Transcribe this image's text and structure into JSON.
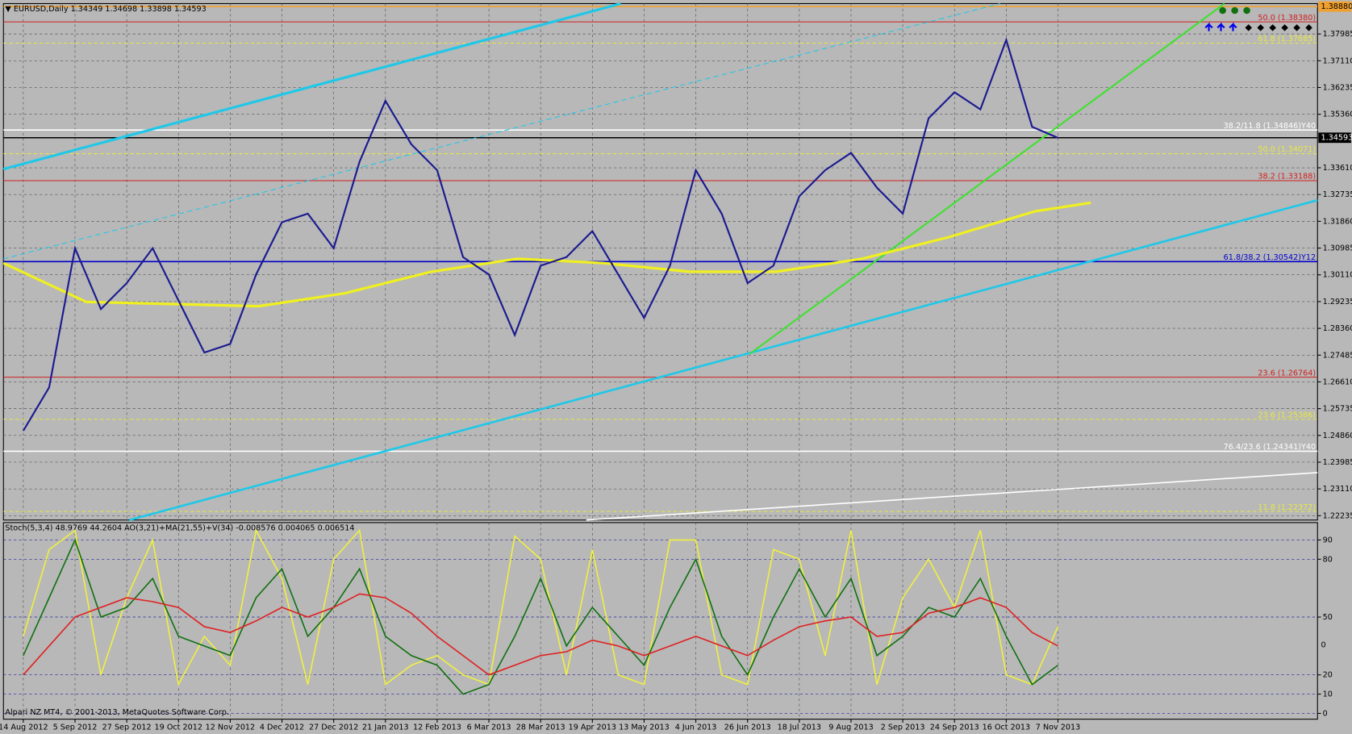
{
  "chart_data": [
    {
      "type": "line",
      "title": "▼ EURUSD,Daily 1.34349 1.34698 1.33898 1.34593",
      "footer": "Alpari NZ MT4, © 2001-2013, MetaQuotes Software Corp.",
      "categories": [
        "14 Aug 2012",
        null,
        "5 Sep 2012",
        null,
        "27 Sep 2012",
        null,
        "19 Oct 2012",
        null,
        "12 Nov 2012",
        null,
        "4 Dec 2012",
        null,
        "27 Dec 2012",
        null,
        "21 Jan 2013",
        null,
        "12 Feb 2013",
        null,
        "6 Mar 2013",
        null,
        "28 Mar 2013",
        null,
        "19 Apr 2013",
        null,
        "13 May 2013",
        null,
        "4 Jun 2013",
        null,
        "26 Jun 2013",
        null,
        "18 Jul 2013",
        null,
        "9 Aug 2013",
        null,
        "2 Sep 2013",
        null,
        "24 Sep 2013",
        null,
        "16 Oct 2013",
        null,
        "7 Nov 2013"
      ],
      "series": [
        {
          "color": "#1a1a90",
          "values": [
            1.2501,
            1.2643,
            1.3098,
            1.2899,
            1.2984,
            1.3098,
            1.2927,
            1.2757,
            1.2785,
            1.3012,
            1.3183,
            1.3211,
            1.3098,
            1.3381,
            1.358,
            1.3438,
            1.3353,
            1.3069,
            1.3012,
            1.2814,
            1.3041,
            1.3069,
            1.3154,
            1.3012,
            1.287,
            1.3041,
            1.3353,
            1.3211,
            1.2984,
            1.3041,
            1.3268,
            1.3353,
            1.341,
            1.3296,
            1.3211,
            1.3523,
            1.3608,
            1.3552,
            1.3779,
            1.3495,
            1.3459
          ]
        }
      ],
      "ylim": [
        1.22093,
        1.38978
      ],
      "yticks": [
        {
          "value": 1.37985,
          "label": "1.37985"
        },
        {
          "value": 1.3711,
          "label": "1.37110"
        },
        {
          "value": 1.36235,
          "label": "1.36235"
        },
        {
          "value": 1.3536,
          "label": "1.35360"
        },
        {
          "value": 1.3361,
          "label": "1.33610"
        },
        {
          "value": 1.32735,
          "label": "1.32735"
        },
        {
          "value": 1.3186,
          "label": "1.31860"
        },
        {
          "value": 1.30985,
          "label": "1.30985"
        },
        {
          "value": 1.3011,
          "label": "1.30110"
        },
        {
          "value": 1.29235,
          "label": "1.29235"
        },
        {
          "value": 1.2836,
          "label": "1.28360"
        },
        {
          "value": 1.27485,
          "label": "1.27485"
        },
        {
          "value": 1.2661,
          "label": "1.26610"
        },
        {
          "value": 1.25735,
          "label": "1.25735"
        },
        {
          "value": 1.2486,
          "label": "1.24860"
        },
        {
          "value": 1.23985,
          "label": "1.23985"
        },
        {
          "value": 1.2311,
          "label": "1.23110"
        },
        {
          "value": 1.22235,
          "label": "1.22235"
        }
      ],
      "price_markers": [
        {
          "value": 1.3888,
          "label": "1.38880",
          "color": "#f0a030"
        },
        {
          "value": 1.34593,
          "label": "1.34593",
          "color": "#000000"
        }
      ],
      "levels": [
        {
          "value": 1.3838,
          "label": "50.0 (1.38380)",
          "color": "#d02020"
        },
        {
          "value": 1.37685,
          "label": "61.8 (1.37685)",
          "color": "#e8e840"
        },
        {
          "value": 1.34846,
          "label": "38.2/11.8 (1.34846)Y40",
          "color": "#ffffff"
        },
        {
          "value": 1.34071,
          "label": "50.0 (1.34071)",
          "color": "#e8e840"
        },
        {
          "value": 1.33188,
          "label": "38.2 (1.33188)",
          "color": "#d02020"
        },
        {
          "value": 1.30542,
          "label": "61.8/38.2 (1.30542)Y12",
          "color": "#0000cc"
        },
        {
          "value": 1.26764,
          "label": "23.6 (1.26764)",
          "color": "#d02020"
        },
        {
          "value": 1.25386,
          "label": "23.6 (1.25386)",
          "color": "#e8e840"
        },
        {
          "value": 1.24341,
          "label": "76.4/23.6 (1.24341)Y40",
          "color": "#ffffff"
        },
        {
          "value": 1.22372,
          "label": "11.8 (1.22372)",
          "color": "#e8e840"
        }
      ],
      "grid": true
    },
    {
      "type": "line",
      "title": "Stoch(5,3,4) 48.9769 44.2604 AO(3,21)+MA(21,55)+V(34) -0.008576 0.004065 0.006514",
      "zero_label": "0",
      "series": [
        {
          "color": "#f0f040",
          "values": [
            40,
            85,
            95,
            20,
            60,
            90,
            15,
            40,
            25,
            95,
            70,
            15,
            80,
            95,
            15,
            25,
            30,
            20,
            15,
            92,
            80,
            20,
            85,
            20,
            15,
            90,
            90,
            20,
            15,
            85,
            80,
            30,
            95,
            15,
            60,
            80,
            55,
            95,
            20,
            15,
            45
          ]
        },
        {
          "color": "#107010",
          "values": [
            30,
            60,
            90,
            50,
            55,
            70,
            40,
            35,
            30,
            60,
            75,
            40,
            55,
            75,
            40,
            30,
            25,
            10,
            15,
            40,
            70,
            35,
            55,
            40,
            25,
            55,
            80,
            40,
            20,
            50,
            75,
            50,
            70,
            30,
            40,
            55,
            50,
            70,
            40,
            15,
            25
          ]
        },
        {
          "color": "#e02020",
          "values": [
            20,
            35,
            50,
            55,
            60,
            58,
            55,
            45,
            42,
            48,
            55,
            50,
            55,
            62,
            60,
            52,
            40,
            30,
            20,
            25,
            30,
            32,
            38,
            35,
            30,
            35,
            40,
            35,
            30,
            38,
            45,
            48,
            50,
            40,
            42,
            52,
            55,
            60,
            55,
            42,
            35
          ]
        }
      ],
      "ylim": [
        -3,
        99
      ],
      "yticks": [
        0,
        10,
        20,
        50,
        80,
        90
      ],
      "grid": true
    }
  ]
}
